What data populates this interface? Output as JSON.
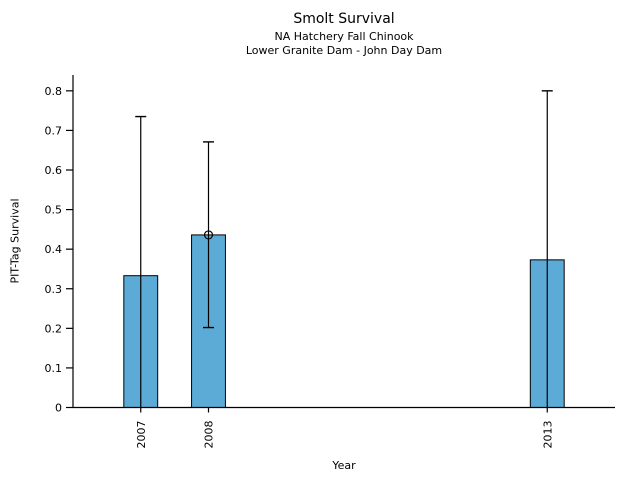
{
  "chart_data": {
    "type": "bar",
    "title": "Smolt Survival",
    "subtitle1": "NA Hatchery Fall Chinook",
    "subtitle2": "Lower Granite Dam - John Day Dam",
    "xlabel": "Year",
    "ylabel": "PIT-Tag Survival",
    "categories": [
      2007,
      2008,
      2013
    ],
    "xtick_labels": [
      "2007",
      "2008",
      "2013"
    ],
    "values": [
      0.333,
      0.436,
      0.373
    ],
    "error_upper": [
      0.735,
      0.671,
      0.8
    ],
    "error_lower": [
      0.0,
      0.202,
      0.0
    ],
    "point_marker": [
      false,
      true,
      false
    ],
    "yticks": [
      {
        "value": 0.0,
        "label": "0"
      },
      {
        "value": 0.1,
        "label": "0.1"
      },
      {
        "value": 0.2,
        "label": "0.2"
      },
      {
        "value": 0.3,
        "label": "0.3"
      },
      {
        "value": 0.4,
        "label": "0.4"
      },
      {
        "value": 0.5,
        "label": "0.5"
      },
      {
        "value": 0.6,
        "label": "0.6"
      },
      {
        "value": 0.7,
        "label": "0.7"
      },
      {
        "value": 0.8,
        "label": "0.8"
      }
    ],
    "xlim": [
      2006,
      2014
    ],
    "ylim": [
      0,
      0.84
    ],
    "bar_width_years": 0.5,
    "bar_color": "#5BABD6",
    "bar_edge_color": "#000000",
    "axis_color": "#000000",
    "legend": "none",
    "grid": false
  }
}
